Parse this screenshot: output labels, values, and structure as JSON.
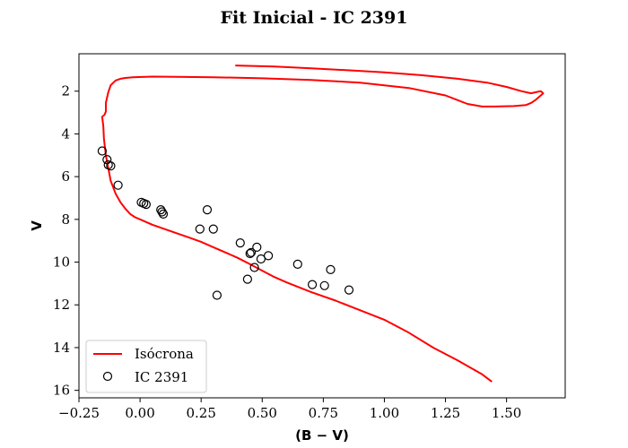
{
  "chart_data": {
    "type": "scatter",
    "title": "Fit Inicial - IC 2391",
    "xlabel": "(B − V)",
    "ylabel": "V",
    "xlim": [
      -0.25,
      1.74
    ],
    "ylim": [
      16.35,
      0.25
    ],
    "y_inverted": true,
    "grid": false,
    "legend_position": "bottom-left",
    "x_ticks": [
      -0.25,
      0.0,
      0.25,
      0.5,
      0.75,
      1.0,
      1.25,
      1.5
    ],
    "x_tick_labels": [
      "−0.25",
      "0.00",
      "0.25",
      "0.50",
      "0.75",
      "1.00",
      "1.25",
      "1.50"
    ],
    "y_ticks": [
      2,
      4,
      6,
      8,
      10,
      12,
      14,
      16
    ],
    "y_tick_labels": [
      "2",
      "4",
      "6",
      "8",
      "10",
      "12",
      "14",
      "16"
    ],
    "series": [
      {
        "name": "Isócrona",
        "kind": "line",
        "color": "#ff0000",
        "x": [
          0.39,
          0.55,
          0.7,
          0.85,
          1.0,
          1.15,
          1.3,
          1.42,
          1.5,
          1.56,
          1.6,
          1.62,
          1.64,
          1.65,
          1.64,
          1.62,
          1.6,
          1.58,
          1.53,
          1.45,
          1.4,
          1.34,
          1.25,
          1.1,
          0.9,
          0.7,
          0.5,
          0.3,
          0.15,
          0.05,
          -0.03,
          -0.06,
          -0.08,
          -0.1,
          -0.12,
          -0.13,
          -0.14,
          -0.14,
          -0.145,
          -0.15,
          -0.155,
          -0.15,
          -0.148,
          -0.145,
          -0.14,
          -0.13,
          -0.12,
          -0.1,
          -0.08,
          -0.06,
          -0.04,
          -0.02,
          0.0,
          0.02,
          0.05,
          0.1,
          0.15,
          0.2,
          0.25,
          0.3,
          0.35,
          0.4,
          0.45,
          0.5,
          0.55,
          0.6,
          0.7,
          0.8,
          0.9,
          1.0,
          1.1,
          1.2,
          1.3,
          1.4,
          1.44
        ],
        "y": [
          0.8,
          0.85,
          0.93,
          1.02,
          1.12,
          1.25,
          1.42,
          1.6,
          1.8,
          2.0,
          2.1,
          2.05,
          2.0,
          2.1,
          2.2,
          2.4,
          2.55,
          2.65,
          2.7,
          2.72,
          2.72,
          2.6,
          2.2,
          1.85,
          1.6,
          1.48,
          1.4,
          1.35,
          1.33,
          1.32,
          1.35,
          1.38,
          1.42,
          1.5,
          1.72,
          2.05,
          2.55,
          2.95,
          3.1,
          3.15,
          3.2,
          3.65,
          4.2,
          4.5,
          5.0,
          5.6,
          6.2,
          6.8,
          7.2,
          7.5,
          7.75,
          7.9,
          8.0,
          8.1,
          8.25,
          8.45,
          8.65,
          8.85,
          9.05,
          9.3,
          9.55,
          9.8,
          10.1,
          10.4,
          10.7,
          10.95,
          11.4,
          11.8,
          12.25,
          12.7,
          13.3,
          14.0,
          14.6,
          15.25,
          15.6
        ]
      },
      {
        "name": "IC 2391",
        "kind": "points",
        "color": "#000000",
        "x": [
          -0.155,
          -0.135,
          -0.13,
          -0.12,
          -0.09,
          0.005,
          0.015,
          0.025,
          0.085,
          0.09,
          0.095,
          0.245,
          0.275,
          0.3,
          0.315,
          0.41,
          0.44,
          0.45,
          0.455,
          0.468,
          0.478,
          0.495,
          0.525,
          0.645,
          0.705,
          0.755,
          0.78,
          0.855
        ],
        "y": [
          4.8,
          5.2,
          5.45,
          5.5,
          6.4,
          7.2,
          7.25,
          7.3,
          7.55,
          7.65,
          7.75,
          8.45,
          7.55,
          8.45,
          11.55,
          9.1,
          10.8,
          9.6,
          9.55,
          10.25,
          9.3,
          9.85,
          9.7,
          10.1,
          11.05,
          11.1,
          10.35,
          11.3
        ]
      }
    ]
  }
}
